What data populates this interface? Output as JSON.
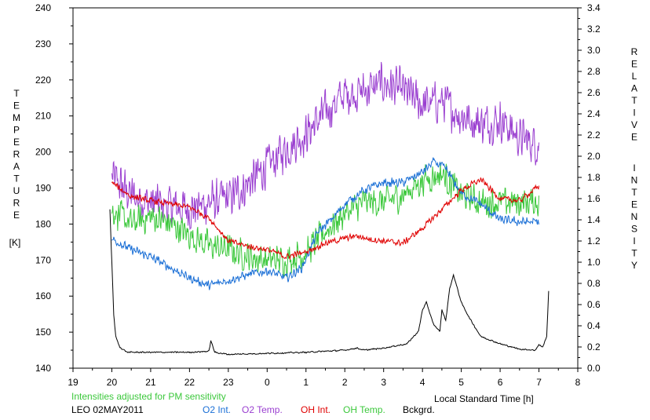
{
  "chart_data": {
    "type": "line",
    "title": "",
    "xlabel": "Local Standard Time [h]",
    "ylabel_left": [
      "T",
      "E",
      "M",
      "P",
      "E",
      "R",
      "A",
      "T",
      "U",
      "R",
      "E"
    ],
    "ylabel_left_unit": "[K]",
    "ylabel_right_1": [
      "R",
      "E",
      "L",
      "A",
      "T",
      "I",
      "V",
      "E"
    ],
    "ylabel_right_2": [
      "I",
      "N",
      "T",
      "E",
      "N",
      "S",
      "I",
      "T",
      "Y"
    ],
    "x_ticks": [
      "19",
      "20",
      "21",
      "22",
      "23",
      "0",
      "1",
      "2",
      "3",
      "4",
      "5",
      "6",
      "7",
      "8"
    ],
    "y_left_ticks": [
      "140",
      "150",
      "160",
      "170",
      "180",
      "190",
      "200",
      "210",
      "220",
      "230",
      "240"
    ],
    "y_right_ticks": [
      "0.0",
      "0.2",
      "0.4",
      "0.6",
      "0.8",
      "1.0",
      "1.2",
      "1.4",
      "1.6",
      "1.8",
      "2.0",
      "2.2",
      "2.4",
      "2.6",
      "2.8",
      "3.0",
      "3.2",
      "3.4"
    ],
    "xlim": [
      19,
      32
    ],
    "ylim_left": [
      140,
      240
    ],
    "ylim_right": [
      0,
      3.4
    ],
    "grid": false,
    "note": "Intensities adjusted for PM sensitivity",
    "station": "LEO 02MAY2011",
    "series": [
      {
        "name": "O2 Int.",
        "color": "#1a6fd6",
        "axis": "right",
        "x": [
          20.0,
          20.5,
          21.0,
          21.5,
          22.0,
          22.5,
          23.0,
          23.5,
          24.0,
          24.5,
          24.9,
          25.3,
          25.7,
          26.0,
          26.5,
          27.0,
          27.5,
          28.0,
          28.3,
          28.6,
          29.0,
          29.5,
          30.0,
          30.5,
          31.0
        ],
        "y": [
          1.22,
          1.12,
          1.05,
          0.95,
          0.85,
          0.78,
          0.83,
          0.88,
          0.92,
          0.85,
          0.95,
          1.28,
          1.42,
          1.55,
          1.68,
          1.75,
          1.75,
          1.85,
          1.95,
          1.88,
          1.65,
          1.55,
          1.4,
          1.38,
          1.38
        ]
      },
      {
        "name": "O2 Temp.",
        "color": "#9a3fd0",
        "axis": "left",
        "x": [
          20.0,
          20.5,
          21.0,
          21.5,
          22.0,
          22.5,
          23.0,
          23.5,
          24.0,
          24.5,
          25.0,
          25.5,
          26.0,
          26.5,
          27.0,
          27.5,
          28.0,
          28.5,
          29.0,
          29.5,
          30.0,
          30.5,
          31.0
        ],
        "y": [
          193,
          188,
          186,
          185,
          184,
          186,
          187,
          191,
          196,
          201,
          205,
          211,
          216,
          217,
          219,
          217,
          213,
          214,
          210,
          208,
          209,
          204,
          202
        ]
      },
      {
        "name": "OH Int.",
        "color": "#e00000",
        "axis": "right",
        "x": [
          20.0,
          20.5,
          21.0,
          21.5,
          22.0,
          22.5,
          23.0,
          23.5,
          24.0,
          24.5,
          25.0,
          25.5,
          26.3,
          26.6,
          27.0,
          27.5,
          28.0,
          28.5,
          29.0,
          29.5,
          30.0,
          30.5,
          31.0
        ],
        "y": [
          1.75,
          1.62,
          1.58,
          1.55,
          1.52,
          1.42,
          1.2,
          1.15,
          1.12,
          1.05,
          1.1,
          1.18,
          1.25,
          1.22,
          1.2,
          1.18,
          1.32,
          1.5,
          1.68,
          1.78,
          1.6,
          1.58,
          1.72
        ]
      },
      {
        "name": "OH Temp.",
        "color": "#3cc83c",
        "axis": "left",
        "x": [
          20.0,
          20.5,
          21.0,
          21.5,
          22.0,
          22.5,
          23.0,
          23.5,
          24.0,
          24.5,
          25.0,
          25.5,
          26.0,
          26.5,
          27.0,
          27.5,
          28.0,
          28.5,
          29.0,
          29.5,
          30.0,
          30.5,
          31.0
        ],
        "y": [
          184,
          180,
          182,
          180,
          177,
          174,
          173,
          171,
          170,
          170,
          172,
          178,
          183,
          186,
          186,
          188,
          192,
          194,
          188,
          186,
          186,
          186,
          186
        ]
      },
      {
        "name": "Bckgrd.",
        "color": "#000000",
        "axis": "right",
        "x": [
          19.95,
          20.0,
          20.05,
          20.1,
          20.2,
          20.4,
          21.0,
          22.0,
          22.5,
          22.55,
          22.65,
          23.0,
          24.0,
          25.0,
          26.0,
          26.3,
          26.5,
          27.0,
          27.6,
          27.9,
          28.0,
          28.1,
          28.3,
          28.45,
          28.5,
          28.6,
          28.7,
          28.8,
          28.9,
          29.0,
          29.2,
          29.5,
          30.0,
          30.5,
          30.9,
          31.0,
          31.1,
          31.2,
          31.25
        ],
        "y": [
          1.5,
          1.0,
          0.5,
          0.3,
          0.2,
          0.15,
          0.15,
          0.15,
          0.16,
          0.26,
          0.15,
          0.13,
          0.14,
          0.15,
          0.17,
          0.19,
          0.17,
          0.19,
          0.23,
          0.35,
          0.55,
          0.62,
          0.4,
          0.35,
          0.55,
          0.45,
          0.75,
          0.88,
          0.75,
          0.62,
          0.48,
          0.3,
          0.23,
          0.18,
          0.17,
          0.22,
          0.2,
          0.3,
          0.73
        ]
      }
    ]
  }
}
